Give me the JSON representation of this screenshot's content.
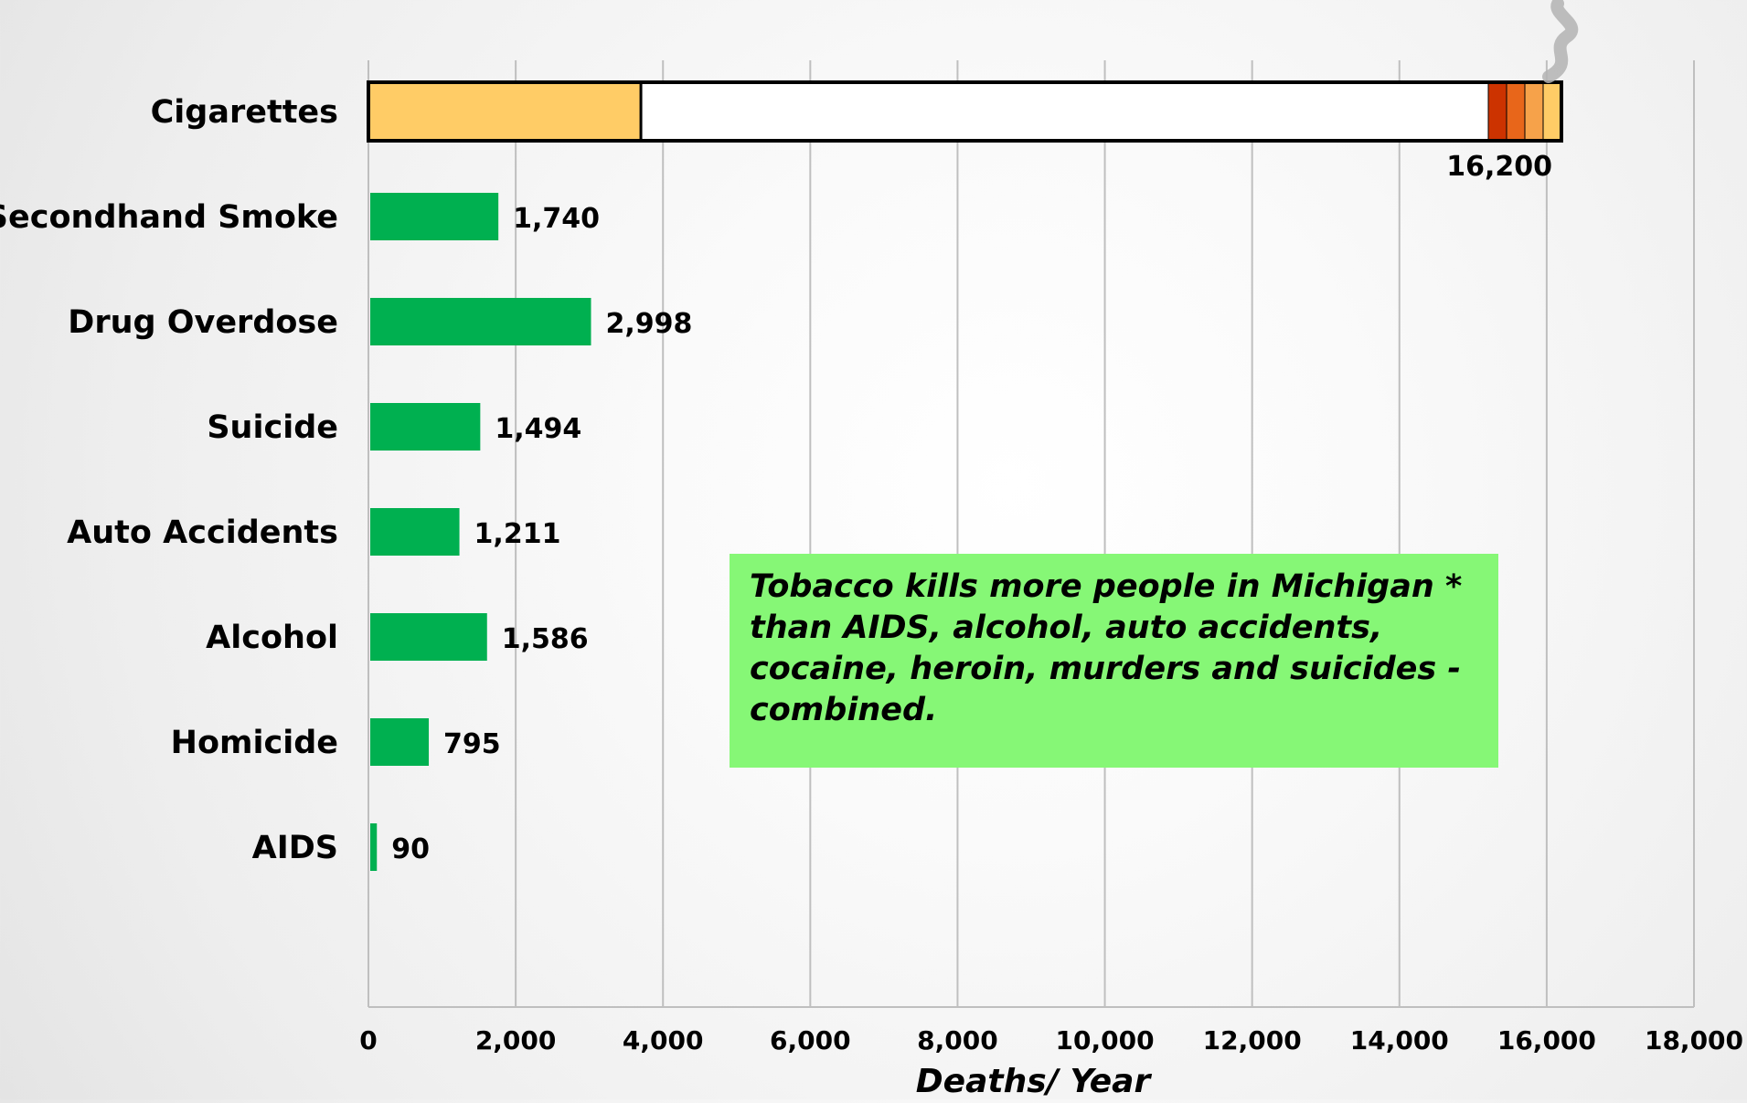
{
  "chart_data": {
    "type": "bar",
    "orientation": "horizontal",
    "categories": [
      "Cigarettes",
      "Secondhand Smoke",
      "Drug Overdose",
      "Suicide",
      "Auto Accidents",
      "Alcohol",
      "Homicide",
      "AIDS"
    ],
    "values": [
      16200,
      1740,
      2998,
      1494,
      1211,
      1586,
      795,
      90
    ],
    "value_labels": [
      "16,200",
      "1,740",
      "2,998",
      "1,494",
      "1,211",
      "1,586",
      "795",
      "90"
    ],
    "xlabel": "Deaths/ Year",
    "ylabel": "",
    "xlim": [
      0,
      18000
    ],
    "x_ticks": [
      0,
      2000,
      4000,
      6000,
      8000,
      10000,
      12000,
      14000,
      16000,
      18000
    ],
    "x_tick_labels": [
      "0",
      "2,000",
      "4,000",
      "6,000",
      "8,000",
      "10,000",
      "12,000",
      "14,000",
      "16,000",
      "18,000"
    ],
    "grid": "vertical",
    "legend": "none",
    "bar_color": "#00b050",
    "cigarette_style": {
      "filter_color": "#ffcc66",
      "paper_color": "#ffffff",
      "ember_colors": [
        "#cc3300",
        "#e8661a",
        "#f6a24a",
        "#ffcc66"
      ],
      "outline_color": "#000000",
      "smoke_color": "#b3b3b3"
    }
  },
  "callout": {
    "text": "Tobacco kills more people in Michigan * than AIDS, alcohol, auto accidents, cocaine, heroin, murders and suicides - combined.",
    "background": "#86f776"
  }
}
